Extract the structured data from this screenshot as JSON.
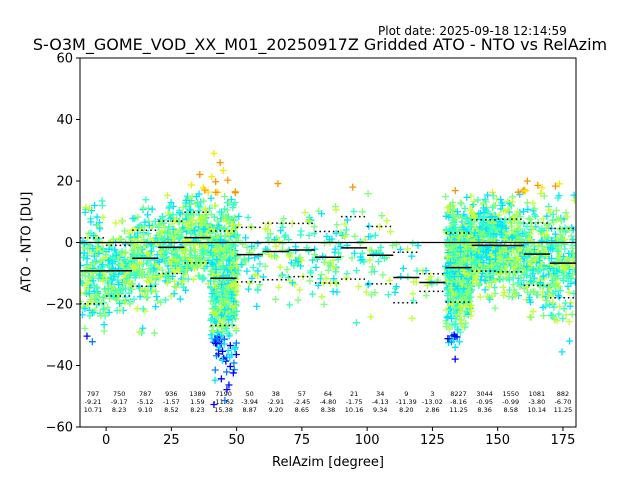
{
  "chart_data": {
    "type": "scatter",
    "title": "S-O3M_GOME_VOD_XX_M01_20250917Z Gridded ATO - NTO vs RelAzim",
    "plot_date": "Plot date: 2025-09-18 12:14:59",
    "xlabel": "RelAzim [degree]",
    "ylabel": "ATO - NTO [DU]",
    "xlim": [
      -10,
      180
    ],
    "ylim": [
      -60,
      60
    ],
    "xticks": [
      0,
      25,
      50,
      75,
      100,
      125,
      150,
      175
    ],
    "yticks": [
      -60,
      -40,
      -20,
      0,
      20,
      40,
      60
    ],
    "marker": "+",
    "colormap": [
      "#00007f",
      "#0000ff",
      "#0080ff",
      "#00e5ff",
      "#33ffc4",
      "#7dff7a",
      "#c4ff33",
      "#ffe500",
      "#ff9400"
    ],
    "reference_line": 0,
    "bins": [
      {
        "x_start": -10,
        "x_end": 0,
        "count": "797",
        "mean": "-9.21",
        "std": "10.71"
      },
      {
        "x_start": 0,
        "x_end": 10,
        "count": "750",
        "mean": "-9.17",
        "std": "8.23"
      },
      {
        "x_start": 10,
        "x_end": 20,
        "count": "787",
        "mean": "-5.12",
        "std": "9.10"
      },
      {
        "x_start": 20,
        "x_end": 30,
        "count": "936",
        "mean": "-1.57",
        "std": "8.52"
      },
      {
        "x_start": 30,
        "x_end": 40,
        "count": "1389",
        "mean": "1.59",
        "std": "8.23"
      },
      {
        "x_start": 40,
        "x_end": 50,
        "count": "7190",
        "mean": "-11.62",
        "std": "15.38"
      },
      {
        "x_start": 50,
        "x_end": 60,
        "count": "50",
        "mean": "-3.94",
        "std": "8.87"
      },
      {
        "x_start": 60,
        "x_end": 70,
        "count": "38",
        "mean": "-2.91",
        "std": "9.20"
      },
      {
        "x_start": 70,
        "x_end": 80,
        "count": "57",
        "mean": "-2.45",
        "std": "8.65"
      },
      {
        "x_start": 80,
        "x_end": 90,
        "count": "64",
        "mean": "-4.80",
        "std": "8.38"
      },
      {
        "x_start": 90,
        "x_end": 100,
        "count": "21",
        "mean": "-1.75",
        "std": "10.16"
      },
      {
        "x_start": 100,
        "x_end": 110,
        "count": "34",
        "mean": "-4.13",
        "std": "9.34"
      },
      {
        "x_start": 110,
        "x_end": 120,
        "count": "9",
        "mean": "-11.39",
        "std": "8.20"
      },
      {
        "x_start": 120,
        "x_end": 130,
        "count": "3",
        "mean": "-13.02",
        "std": "2.86"
      },
      {
        "x_start": 130,
        "x_end": 140,
        "count": "8227",
        "mean": "-8.16",
        "std": "11.25"
      },
      {
        "x_start": 140,
        "x_end": 150,
        "count": "3044",
        "mean": "-0.95",
        "std": "8.36"
      },
      {
        "x_start": 150,
        "x_end": 160,
        "count": "1550",
        "mean": "-0.99",
        "std": "8.58"
      },
      {
        "x_start": 160,
        "x_end": 170,
        "count": "1081",
        "mean": "-3.80",
        "std": "10.14"
      },
      {
        "x_start": 170,
        "x_end": 180,
        "count": "882",
        "mean": "-6.70",
        "std": "11.25"
      }
    ]
  }
}
